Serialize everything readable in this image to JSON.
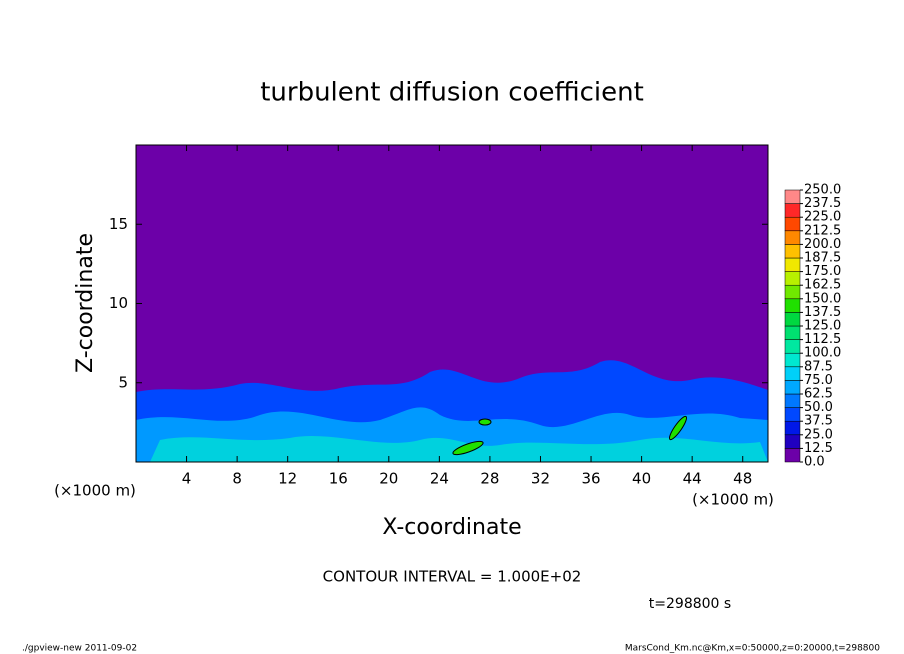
{
  "chart_data": {
    "type": "heatmap",
    "title": "turbulent diffusion coefficient",
    "x_label": "X-coordinate",
    "y_label": "Z-coordinate",
    "x_unit": "(×1000 m)",
    "y_unit": "(×1000 m)",
    "xlim": [
      0,
      50
    ],
    "ylim": [
      0,
      20
    ],
    "xticks": [
      4,
      8,
      12,
      16,
      20,
      24,
      28,
      32,
      36,
      40,
      44,
      48
    ],
    "yticks": [
      5,
      10,
      15
    ],
    "colorbar_levels": [
      {
        "value": 0,
        "label": "0.0"
      },
      {
        "value": 12.5,
        "label": "12.5"
      },
      {
        "value": 25,
        "label": "25.0"
      },
      {
        "value": 37.5,
        "label": "37.5"
      },
      {
        "value": 50,
        "label": "50.0"
      },
      {
        "value": 62.5,
        "label": "62.5"
      },
      {
        "value": 75,
        "label": "75.0"
      },
      {
        "value": 87.5,
        "label": "87.5"
      },
      {
        "value": 100,
        "label": "100.0"
      },
      {
        "value": 112.5,
        "label": "112.5"
      },
      {
        "value": 125,
        "label": "125.0"
      },
      {
        "value": 137.5,
        "label": "137.5"
      },
      {
        "value": 150,
        "label": "150.0"
      },
      {
        "value": 162.5,
        "label": "162.5"
      },
      {
        "value": 175,
        "label": "175.0"
      },
      {
        "value": 187.5,
        "label": "187.5"
      },
      {
        "value": 200,
        "label": "200.0"
      },
      {
        "value": 212.5,
        "label": "212.5"
      },
      {
        "value": 225,
        "label": "225.0"
      },
      {
        "value": 237.5,
        "label": "237.5"
      },
      {
        "value": 250,
        "label": "250.0"
      }
    ],
    "colorbar_colors": [
      "#6c00a8",
      "#2000c0",
      "#0018e8",
      "#0048ff",
      "#0078ff",
      "#00a8ff",
      "#00d0f8",
      "#00e8d0",
      "#00e8a0",
      "#00e070",
      "#00d840",
      "#20e000",
      "#70e800",
      "#b8f000",
      "#f0e800",
      "#ffc000",
      "#ff8800",
      "#ff4800",
      "#ff2828",
      "#ff8888"
    ],
    "contour_interval": "CONTOUR INTERVAL = 1.000E+02",
    "time_label": "t=298800 s",
    "footer_left": "./gpview-new  2011-09-02",
    "footer_right": "MarsCond_Km.nc@Km,x=0:50000,z=0:20000,t=298800"
  }
}
